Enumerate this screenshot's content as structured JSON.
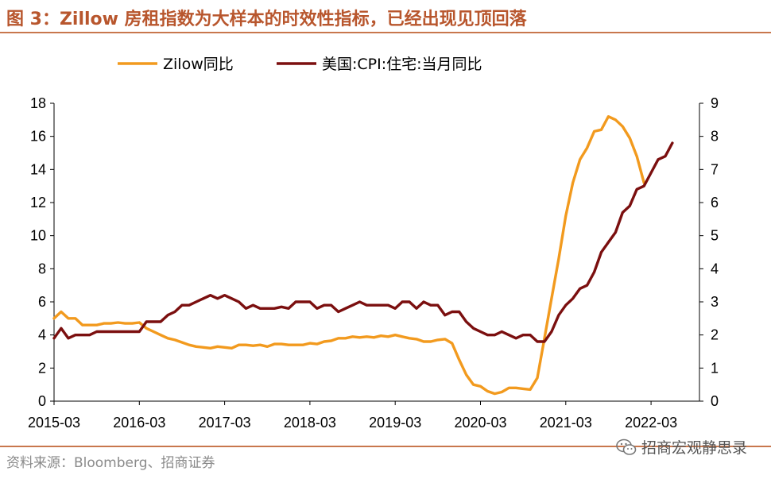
{
  "title": "图 3：Zillow 房租指数为大样本的时效性指标，已经出现见顶回落",
  "source": "资料来源：Bloomberg、招商证券",
  "watermark": {
    "text": "招商宏观静思录",
    "icon": "wechat-icon"
  },
  "chart_data": {
    "type": "line",
    "title": "",
    "xlabel": "",
    "ylabel": "",
    "x_ticks": [
      "2015-03",
      "2016-03",
      "2017-03",
      "2018-03",
      "2019-03",
      "2020-03",
      "2021-03",
      "2022-03"
    ],
    "y_left": {
      "ylim": [
        0,
        18
      ],
      "ticks": [
        0,
        2,
        4,
        6,
        8,
        10,
        12,
        14,
        16,
        18
      ]
    },
    "y_right": {
      "ylim": [
        0,
        9
      ],
      "ticks": [
        0,
        1,
        2,
        3,
        4,
        5,
        6,
        7,
        8,
        9
      ]
    },
    "grid": false,
    "legend_position": "top",
    "x_start": "2015-03",
    "series": [
      {
        "name": "Zilow同比",
        "axis": "left",
        "color": "#f29a1e",
        "values": [
          5.0,
          5.4,
          5.0,
          5.0,
          4.6,
          4.6,
          4.6,
          4.7,
          4.7,
          4.75,
          4.7,
          4.7,
          4.75,
          4.4,
          4.2,
          4.0,
          3.8,
          3.7,
          3.55,
          3.4,
          3.3,
          3.25,
          3.2,
          3.3,
          3.25,
          3.2,
          3.4,
          3.4,
          3.35,
          3.4,
          3.3,
          3.45,
          3.45,
          3.4,
          3.4,
          3.4,
          3.5,
          3.45,
          3.6,
          3.65,
          3.8,
          3.8,
          3.9,
          3.85,
          3.9,
          3.85,
          3.95,
          3.9,
          4.0,
          3.9,
          3.8,
          3.75,
          3.6,
          3.6,
          3.7,
          3.75,
          3.5,
          2.5,
          1.6,
          1.0,
          0.9,
          0.6,
          0.45,
          0.55,
          0.8,
          0.8,
          0.75,
          0.7,
          1.4,
          3.8,
          6.2,
          8.6,
          11.2,
          13.2,
          14.6,
          15.3,
          16.3,
          16.4,
          17.2,
          17.0,
          16.6,
          15.9,
          14.8,
          13.2
        ]
      },
      {
        "name": "美国:CPI:住宅:当月同比",
        "axis": "right",
        "color": "#7b0f0f",
        "values": [
          1.9,
          2.2,
          1.9,
          2.0,
          2.0,
          2.0,
          2.1,
          2.1,
          2.1,
          2.1,
          2.1,
          2.1,
          2.1,
          2.4,
          2.4,
          2.4,
          2.6,
          2.7,
          2.9,
          2.9,
          3.0,
          3.1,
          3.2,
          3.1,
          3.2,
          3.1,
          3.0,
          2.8,
          2.9,
          2.8,
          2.8,
          2.8,
          2.85,
          2.8,
          3.0,
          3.0,
          3.0,
          2.8,
          2.9,
          2.9,
          2.7,
          2.8,
          2.9,
          3.0,
          2.9,
          2.9,
          2.9,
          2.9,
          2.8,
          3.0,
          3.0,
          2.8,
          3.0,
          2.9,
          2.9,
          2.6,
          2.7,
          2.7,
          2.4,
          2.2,
          2.1,
          2.0,
          2.0,
          2.1,
          2.0,
          1.9,
          2.0,
          2.0,
          1.8,
          1.8,
          2.1,
          2.6,
          2.9,
          3.1,
          3.4,
          3.5,
          3.9,
          4.5,
          4.8,
          5.1,
          5.7,
          5.9,
          6.4,
          6.5,
          6.9,
          7.3,
          7.4,
          7.8
        ]
      }
    ]
  }
}
